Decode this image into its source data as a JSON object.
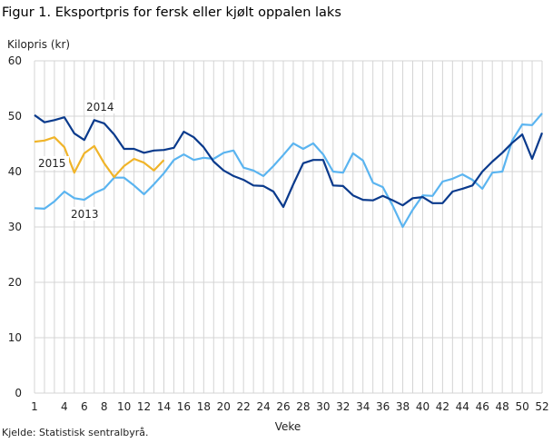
{
  "title": "Figur 1. Eksportpris for fersk eller kjølt oppalen laks",
  "source": "Kjelde: Statistisk sentralbyrå.",
  "chart_data": {
    "type": "line",
    "title": "Figur 1. Eksportpris for fersk eller kjølt oppalen laks",
    "ylabel": "Kilopris  (kr)",
    "xlabel": "Veke",
    "ylim": [
      0,
      60
    ],
    "yticks": [
      0,
      10,
      20,
      30,
      40,
      50,
      60
    ],
    "xlim": [
      1,
      52
    ],
    "xticks": [
      1,
      4,
      6,
      8,
      10,
      12,
      14,
      16,
      18,
      20,
      22,
      24,
      26,
      28,
      30,
      32,
      34,
      36,
      38,
      40,
      42,
      44,
      46,
      48,
      50,
      52
    ],
    "grid": true,
    "legend": "inline labels",
    "series": [
      {
        "name": "2013",
        "color": "#5ab4f0",
        "values": [
          33.4,
          33.3,
          34.6,
          36.4,
          35.2,
          34.9,
          36.1,
          36.9,
          38.9,
          38.9,
          37.5,
          35.9,
          37.7,
          39.7,
          42.1,
          43.1,
          42.1,
          42.5,
          42.3,
          43.4,
          43.8,
          40.7,
          40.2,
          39.2,
          41.0,
          43.0,
          45.1,
          44.1,
          45.1,
          43.1,
          40.0,
          39.8,
          43.3,
          42.0,
          38.0,
          37.2,
          33.8,
          30.0,
          33.1,
          35.7,
          35.6,
          38.2,
          38.7,
          39.5,
          38.5,
          36.9,
          39.8,
          40.0,
          45.6,
          48.5,
          48.4,
          50.5
        ]
      },
      {
        "name": "2014",
        "color": "#0a3a8c",
        "values": [
          50.2,
          48.9,
          49.3,
          49.8,
          46.9,
          45.7,
          49.3,
          48.7,
          46.7,
          44.1,
          44.1,
          43.4,
          43.8,
          43.9,
          44.3,
          47.2,
          46.2,
          44.4,
          41.8,
          40.2,
          39.2,
          38.5,
          37.5,
          37.4,
          36.4,
          33.6,
          37.7,
          41.5,
          42.1,
          42.1,
          37.5,
          37.4,
          35.7,
          34.9,
          34.8,
          35.6,
          34.8,
          33.9,
          35.2,
          35.4,
          34.3,
          34.3,
          36.4,
          36.9,
          37.5,
          40.0,
          41.8,
          43.4,
          45.2,
          46.7,
          42.3,
          47.0
        ]
      },
      {
        "name": "2015",
        "color": "#f0b429",
        "values": [
          45.4,
          45.6,
          46.2,
          44.4,
          39.8,
          43.3,
          44.6,
          41.5,
          39.0,
          41.0,
          42.3,
          41.6,
          40.2,
          42.1
        ]
      }
    ]
  }
}
